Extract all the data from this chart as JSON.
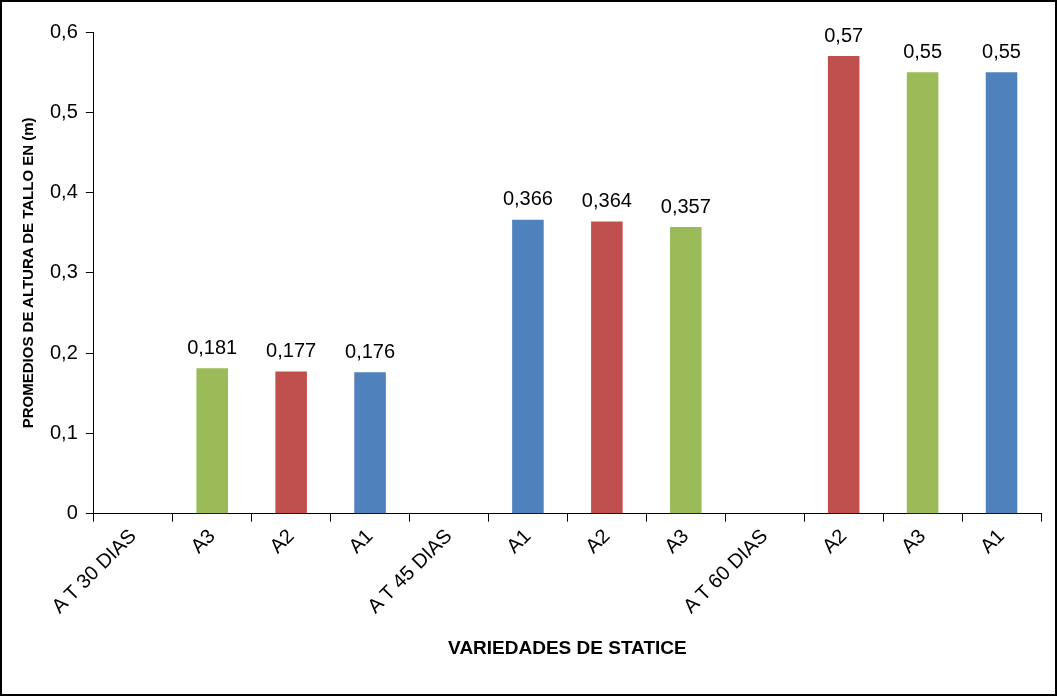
{
  "chart_data": {
    "type": "bar",
    "xlabel": "VARIEDADES DE STATICE",
    "ylabel": "PROMEDIOS DE ALTURA DE TALLO EN (m)",
    "categories": [
      "A T 30 DIAS",
      "A3",
      "A2",
      "A1",
      "A T 45 DIAS",
      "A1",
      "A2",
      "A3",
      "A T 60 DIAS",
      "A2",
      "A3",
      "A1"
    ],
    "values": [
      null,
      0.181,
      0.177,
      0.176,
      null,
      0.366,
      0.364,
      0.357,
      null,
      0.57,
      0.55,
      0.55
    ],
    "colors": [
      "#4f81bd",
      "#9bbb59",
      "#c0504d",
      "#4f81bd",
      "#4f81bd",
      "#4f81bd",
      "#c0504d",
      "#9bbb59",
      "#4f81bd",
      "#c0504d",
      "#9bbb59",
      "#4f81bd"
    ],
    "value_labels": [
      null,
      "0,181",
      "0,177",
      "0,176",
      null,
      "0,366",
      "0,364",
      "0,357",
      null,
      "0,57",
      "0,55",
      "0,55"
    ],
    "ylim": [
      0,
      0.6
    ],
    "yticks": [
      0,
      {
        "value": 0.1,
        "label": "0,1"
      },
      {
        "value": 0.2,
        "label": "0,2"
      },
      {
        "value": 0.3,
        "label": "0,3"
      },
      {
        "value": 0.4,
        "label": "0,4"
      },
      {
        "value": 0.5,
        "label": "0,5"
      },
      {
        "value": 0.6,
        "label": "0,6"
      }
    ],
    "grid": false,
    "legend": false
  }
}
